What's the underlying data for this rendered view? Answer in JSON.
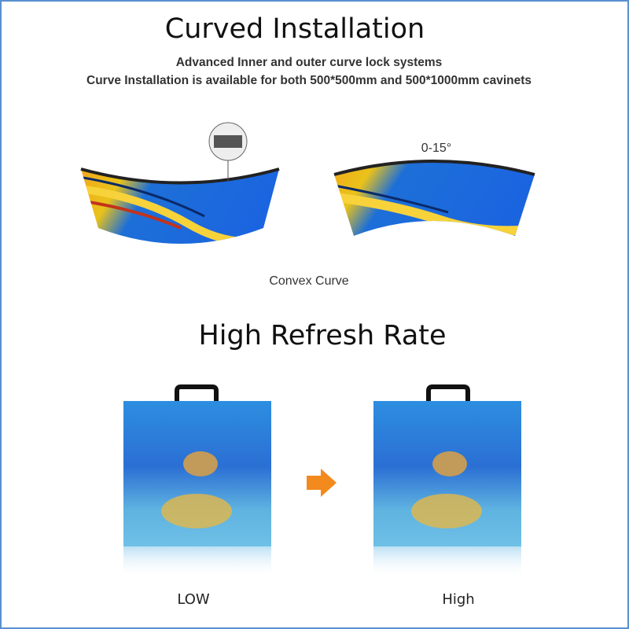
{
  "section_1": {
    "title": "Curved Installation",
    "subtitle_lines": [
      "Advanced Inner and outer curve lock systems",
      "Curve Installation is available for both 500*500mm and 500*1000mm cavinets"
    ],
    "angle_label": "0-15°",
    "caption": "Convex Curve"
  },
  "section_2": {
    "title": "High Refresh Rate",
    "labels": [
      "LOW",
      "High"
    ]
  }
}
